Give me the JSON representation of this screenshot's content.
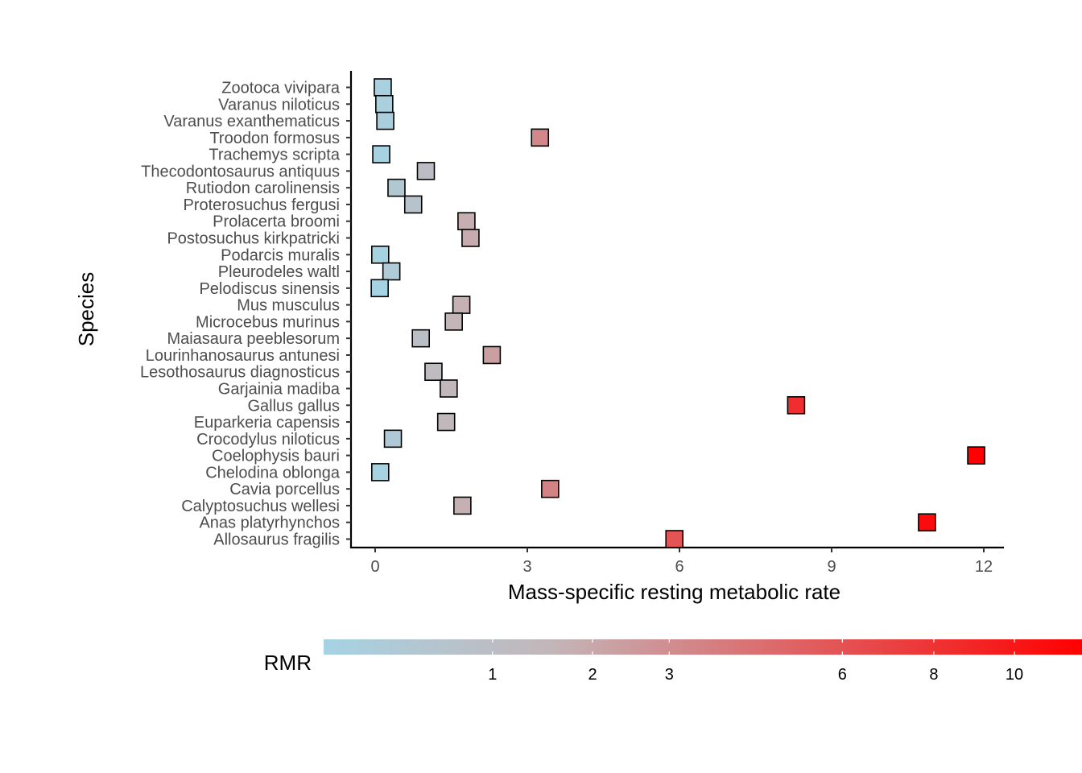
{
  "chart_data": {
    "type": "scatter",
    "xlabel": "Mass-specific resting metabolic rate",
    "ylabel": "Species",
    "xlim": [
      -0.8,
      12.4
    ],
    "xticks": [
      0,
      3,
      6,
      9,
      12
    ],
    "grid": false,
    "marker": "square",
    "categories": [
      "Zootoca vivipara",
      "Varanus niloticus",
      "Varanus exanthematicus",
      "Troodon formosus",
      "Trachemys scripta",
      "Thecodontosaurus antiquus",
      "Rutiodon carolinensis",
      "Proterosuchus fergusi",
      "Prolacerta broomi",
      "Postosuchus kirkpatricki",
      "Podarcis muralis",
      "Pleurodeles waltl",
      "Pelodiscus sinensis",
      "Mus musculus",
      "Microcebus murinus",
      "Maiasaura peeblesorum",
      "Lourinhanosaurus antunesi",
      "Lesothosaurus diagnosticus",
      "Garjainia madiba",
      "Gallus gallus",
      "Euparkeria capensis",
      "Crocodylus niloticus",
      "Coelophysis bauri",
      "Chelodina oblonga",
      "Cavia porcellus",
      "Calyptosuchus wellesi",
      "Anas platyrhynchos",
      "Allosaurus fragilis"
    ],
    "values": [
      0.15,
      0.18,
      0.2,
      3.25,
      0.12,
      1.0,
      0.42,
      0.75,
      1.8,
      1.88,
      0.1,
      0.32,
      0.09,
      1.7,
      1.55,
      0.9,
      2.3,
      1.15,
      1.45,
      8.3,
      1.4,
      0.35,
      11.85,
      0.1,
      3.45,
      1.72,
      10.88,
      5.9
    ],
    "legend": {
      "title": "RMR",
      "position": "bottom",
      "type": "colorbar",
      "range": [
        0.09,
        11.85
      ],
      "breaks": [
        1,
        2,
        3,
        6,
        8,
        10
      ],
      "breaks_mapping": "sqrt",
      "low_color": "#a6d3e3",
      "mid_color": "#c3b6b9",
      "high_color": "#ff0000"
    }
  }
}
